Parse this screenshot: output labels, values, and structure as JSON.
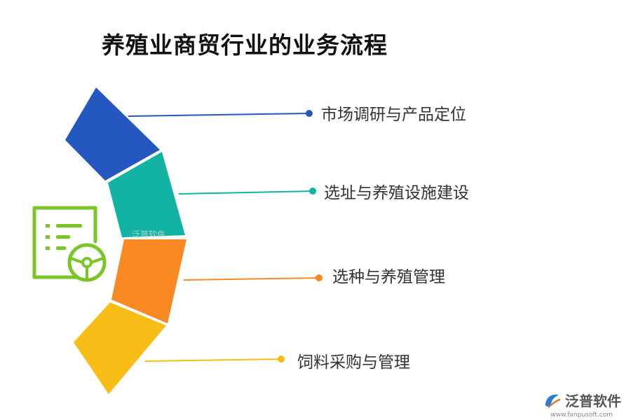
{
  "title": "养殖业商贸行业的业务流程",
  "steps": [
    {
      "label": "市场调研与产品定位",
      "color": "#2457c0"
    },
    {
      "label": "选址与养殖设施建设",
      "color": "#13b3a4"
    },
    {
      "label": "选种与养殖管理",
      "color": "#f98923"
    },
    {
      "label": "饲料采购与管理",
      "color": "#f8be17"
    }
  ],
  "icon": {
    "name": "checklist-steering-wheel-icon",
    "color": "#79c626"
  },
  "watermark": "泛普软件",
  "brand": {
    "name": "泛普软件",
    "url": "www.fanpusoft.com",
    "logo_color": "#2a7ed2"
  }
}
